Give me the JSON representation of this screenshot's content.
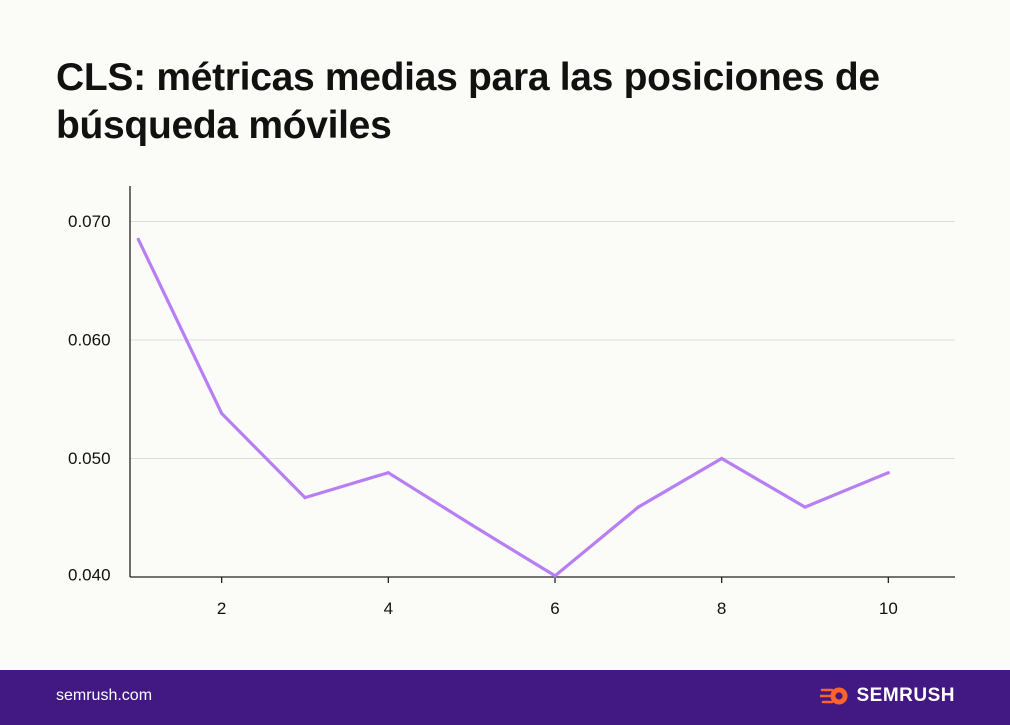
{
  "title": "CLS: métricas medias para las posiciones de búsqueda móviles",
  "footer": {
    "site": "semrush.com",
    "brand": "SEMRUSH"
  },
  "colors": {
    "line": "#b87ff5",
    "footer_bg": "#421983",
    "logo": "#ff642d"
  },
  "chart_data": {
    "type": "line",
    "title": "CLS: métricas medias para las posiciones de búsqueda móviles",
    "xlabel": "",
    "ylabel": "",
    "x": [
      1,
      2,
      3,
      4,
      5,
      6,
      7,
      8,
      9,
      10
    ],
    "values": [
      0.0685,
      0.0538,
      0.0467,
      0.0488,
      0.0444,
      0.0401,
      0.0459,
      0.05,
      0.0459,
      0.0488
    ],
    "xticks": [
      "2",
      "4",
      "6",
      "8",
      "10"
    ],
    "yticks": [
      "0.040",
      "0.050",
      "0.060",
      "0.070"
    ],
    "xlim": [
      0.9,
      10.8
    ],
    "ylim": [
      0.04,
      0.073
    ],
    "grid": "horizontal"
  }
}
